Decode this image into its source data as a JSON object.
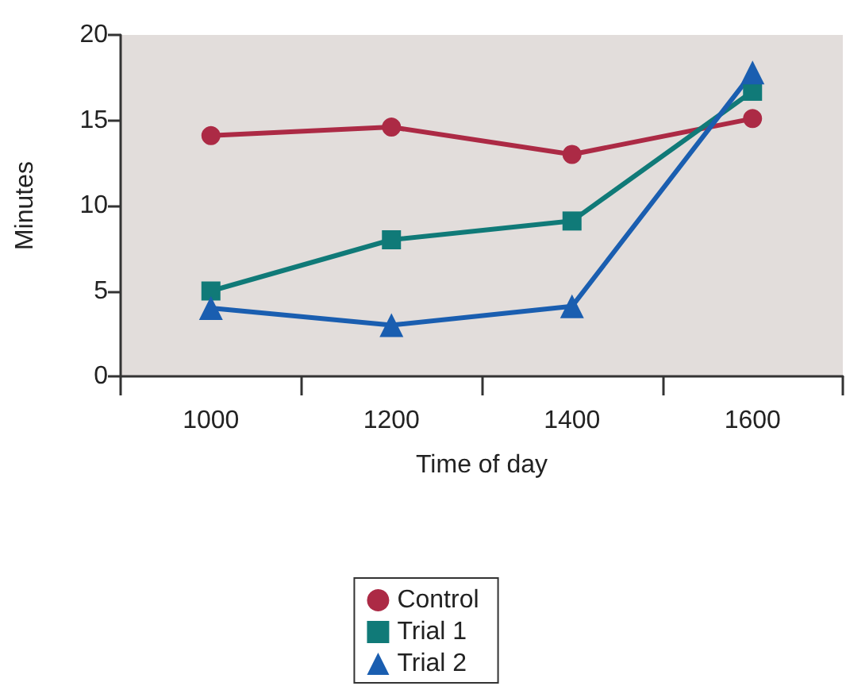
{
  "chart_data": {
    "type": "line",
    "xlabel": "Time of day",
    "ylabel": "Minutes",
    "categories": [
      "1000",
      "1200",
      "1400",
      "1600"
    ],
    "series": [
      {
        "name": "Control",
        "color": "#ac2a45",
        "marker": "circle",
        "values": [
          14.1,
          14.6,
          13.0,
          15.1
        ]
      },
      {
        "name": "Trial 1",
        "color": "#107a78",
        "marker": "square",
        "values": [
          5.0,
          8.0,
          9.1,
          16.7
        ]
      },
      {
        "name": "Trial 2",
        "color": "#1a5eb0",
        "marker": "triangle",
        "values": [
          4.0,
          3.0,
          4.1,
          17.8
        ]
      }
    ],
    "ylim": [
      0,
      20
    ],
    "yticks": [
      0,
      5,
      10,
      15,
      20
    ],
    "grid": false,
    "legend": "bottom"
  }
}
